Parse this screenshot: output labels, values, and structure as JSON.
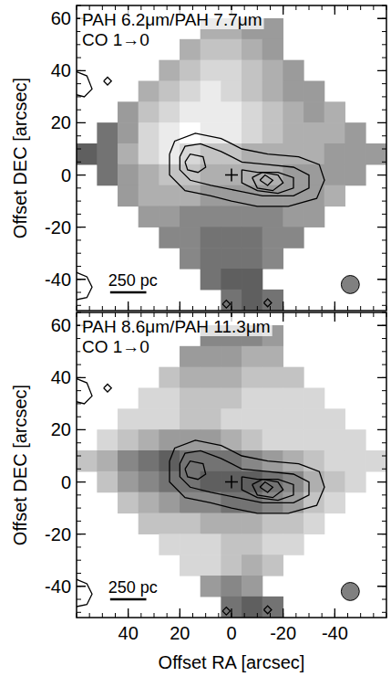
{
  "chart_data": [
    {
      "type": "heatmap",
      "title": "PAH 6.2μm/PAH 7.7μm",
      "subtitle": "CO 1→0",
      "ylabel": "Offset DEC [arcsec]",
      "tick_labels": "y",
      "xlim": [
        60,
        -60
      ],
      "ylim": [
        -52,
        65
      ],
      "xticks": [
        40,
        20,
        0,
        -20,
        -40
      ],
      "yticks": [
        -40,
        -20,
        0,
        20,
        40,
        60
      ],
      "x": [
        56,
        48,
        40,
        32,
        24,
        16,
        8,
        0,
        -8,
        -16,
        -24,
        -32,
        -40,
        -48,
        -56
      ],
      "y": [
        64,
        56,
        48,
        40,
        32,
        24,
        16,
        8,
        0,
        -8,
        -16,
        -24,
        -32,
        -40,
        -48
      ],
      "color_range": [
        0,
        10
      ],
      "cells": [
        [
          null,
          null,
          null,
          null,
          null,
          null,
          null,
          null,
          null,
          null,
          null,
          null,
          null,
          null,
          null
        ],
        [
          null,
          null,
          null,
          null,
          null,
          null,
          6,
          6,
          5,
          5,
          null,
          null,
          null,
          null,
          null
        ],
        [
          null,
          null,
          null,
          null,
          null,
          6,
          7,
          7,
          6,
          5,
          null,
          null,
          null,
          null,
          null
        ],
        [
          null,
          null,
          null,
          null,
          6,
          7,
          8,
          8,
          7,
          6,
          5,
          null,
          null,
          null,
          null
        ],
        [
          null,
          null,
          null,
          6,
          7,
          8,
          9,
          8,
          7,
          6,
          5,
          5,
          null,
          null,
          null
        ],
        [
          null,
          null,
          5,
          7,
          8,
          9,
          9,
          9,
          8,
          7,
          6,
          5,
          6,
          null,
          null
        ],
        [
          null,
          3,
          5,
          8,
          9,
          10,
          9,
          9,
          8,
          7,
          6,
          6,
          6,
          5,
          null
        ],
        [
          2,
          3,
          6,
          8,
          9,
          8,
          7,
          7,
          6,
          6,
          6,
          6,
          5,
          5,
          5
        ],
        [
          null,
          3,
          5,
          6,
          7,
          7,
          6,
          6,
          6,
          6,
          5,
          5,
          5,
          5,
          null
        ],
        [
          null,
          null,
          5,
          6,
          6,
          6,
          5,
          5,
          5,
          5,
          5,
          5,
          6,
          null,
          null
        ],
        [
          null,
          null,
          null,
          5,
          5,
          4,
          4,
          4,
          4,
          4,
          5,
          5,
          null,
          null,
          null
        ],
        [
          null,
          null,
          null,
          null,
          4,
          4,
          3,
          3,
          3,
          4,
          4,
          null,
          null,
          null,
          null
        ],
        [
          null,
          null,
          null,
          null,
          null,
          4,
          3,
          3,
          3,
          4,
          null,
          null,
          null,
          null,
          null
        ],
        [
          null,
          null,
          null,
          null,
          null,
          null,
          3,
          2,
          2,
          null,
          null,
          null,
          null,
          null,
          null
        ],
        [
          null,
          null,
          null,
          null,
          null,
          null,
          null,
          3,
          2,
          3,
          null,
          null,
          null,
          null,
          null
        ]
      ],
      "contours": [
        {
          "x": [
            24,
            22,
            14,
            4,
            -4,
            -14,
            -26,
            -34,
            -36,
            -33,
            -22,
            -10,
            0,
            8,
            18,
            24,
            24
          ],
          "y": [
            8,
            13,
            16,
            14,
            10,
            8,
            7,
            4,
            -2,
            -9,
            -12,
            -12,
            -10,
            -8,
            -6,
            0,
            8
          ]
        },
        {
          "x": [
            20,
            18,
            12,
            4,
            -4,
            -14,
            -24,
            -30,
            -30,
            -24,
            -12,
            -2,
            8,
            16,
            20,
            20
          ],
          "y": [
            7,
            11,
            12,
            9,
            5,
            4,
            3,
            0,
            -5,
            -8,
            -8,
            -6,
            -4,
            -2,
            2,
            7
          ]
        },
        {
          "x": [
            18,
            16,
            11,
            10,
            13,
            17,
            18
          ],
          "y": [
            5,
            8,
            7,
            3,
            1,
            2,
            5
          ]
        },
        {
          "x": [
            -4,
            -10,
            -18,
            -24,
            -24,
            -18,
            -10,
            -4,
            -4
          ],
          "y": [
            2,
            1,
            1,
            -1,
            -5,
            -7,
            -6,
            -3,
            2
          ]
        },
        {
          "x": [
            -8,
            -12,
            -18,
            -20,
            -16,
            -10,
            -8
          ],
          "y": [
            -1,
            1,
            0,
            -3,
            -6,
            -5,
            -1
          ]
        },
        {
          "x": [
            -11,
            -13,
            -16,
            -14,
            -11
          ],
          "y": [
            -2,
            0,
            -2,
            -4,
            -2
          ]
        },
        {
          "x": [
            61,
            56,
            54,
            57,
            61
          ],
          "y": [
            40,
            38,
            33,
            30,
            31
          ]
        },
        {
          "x": [
            49.5,
            48,
            46.5,
            48,
            49.5
          ],
          "y": [
            36,
            37.5,
            36,
            34.5,
            36
          ]
        },
        {
          "x": [
            61,
            56,
            54,
            56,
            61
          ],
          "y": [
            -37,
            -39,
            -43,
            -47,
            -48
          ]
        },
        {
          "x": [
            3.5,
            2,
            0.5,
            2,
            3.5
          ],
          "y": [
            -49.5,
            -48,
            -49.5,
            -51,
            -49.5
          ]
        },
        {
          "x": [
            -12.5,
            -14,
            -15.5,
            -14,
            -12.5
          ],
          "y": [
            -49,
            -47.5,
            -49,
            -50.5,
            -49
          ]
        }
      ],
      "nucleus": {
        "x": 0,
        "y": 0
      },
      "beam": {
        "x": -46,
        "y": -42,
        "radius": 3.5
      },
      "scale_bar": {
        "label": "250 pc",
        "x": [
          47,
          33
        ],
        "y": -45
      }
    },
    {
      "type": "heatmap",
      "title": "PAH 8.6μm/PAH 11.3μm",
      "subtitle": "CO 1→0",
      "xlabel": "Offset RA [arcsec]",
      "ylabel": "Offset DEC [arcsec]",
      "tick_labels": true,
      "xlim": [
        60,
        -60
      ],
      "ylim": [
        -52,
        65
      ],
      "xticks": [
        40,
        20,
        0,
        -20,
        -40
      ],
      "yticks": [
        -40,
        -20,
        0,
        20,
        40,
        60
      ],
      "x": [
        56,
        48,
        40,
        32,
        24,
        16,
        8,
        0,
        -8,
        -16,
        -24,
        -32,
        -40,
        -48,
        -56
      ],
      "y": [
        64,
        56,
        48,
        40,
        32,
        24,
        16,
        8,
        0,
        -8,
        -16,
        -24,
        -32,
        -40,
        -48
      ],
      "color_range": [
        0,
        10
      ],
      "cells": [
        [
          null,
          null,
          null,
          null,
          null,
          null,
          null,
          null,
          null,
          null,
          null,
          null,
          null,
          null,
          null
        ],
        [
          null,
          null,
          null,
          null,
          null,
          null,
          4,
          4,
          4,
          5,
          null,
          null,
          null,
          null,
          null
        ],
        [
          null,
          null,
          null,
          null,
          null,
          5,
          5,
          5,
          6,
          6,
          null,
          null,
          null,
          null,
          null
        ],
        [
          null,
          null,
          null,
          null,
          7,
          6,
          6,
          6,
          7,
          7,
          7,
          null,
          null,
          null,
          null
        ],
        [
          null,
          null,
          null,
          8,
          8,
          7,
          7,
          7,
          8,
          8,
          8,
          8,
          null,
          null,
          null
        ],
        [
          null,
          null,
          8,
          8,
          8,
          7,
          7,
          8,
          8,
          8,
          8,
          8,
          8,
          null,
          null
        ],
        [
          null,
          8,
          7,
          6,
          5,
          5,
          5,
          6,
          7,
          8,
          8,
          8,
          8,
          8,
          null
        ],
        [
          7,
          6,
          4,
          3,
          2,
          3,
          3,
          3,
          4,
          5,
          6,
          7,
          8,
          8,
          8
        ],
        [
          null,
          7,
          5,
          4,
          3,
          3,
          2,
          2,
          2,
          3,
          4,
          6,
          7,
          8,
          null
        ],
        [
          null,
          null,
          7,
          6,
          5,
          4,
          4,
          3,
          3,
          4,
          5,
          7,
          8,
          null,
          null
        ],
        [
          null,
          null,
          null,
          7,
          7,
          7,
          6,
          6,
          6,
          7,
          7,
          8,
          null,
          null,
          null
        ],
        [
          null,
          null,
          null,
          null,
          8,
          8,
          8,
          7,
          7,
          8,
          8,
          null,
          null,
          null,
          null
        ],
        [
          null,
          null,
          null,
          null,
          null,
          8,
          8,
          7,
          6,
          7,
          null,
          null,
          null,
          null,
          null
        ],
        [
          null,
          null,
          null,
          null,
          null,
          null,
          5,
          4,
          5,
          null,
          null,
          null,
          null,
          null,
          null
        ],
        [
          null,
          null,
          null,
          null,
          null,
          null,
          null,
          3,
          2,
          3,
          null,
          null,
          null,
          null,
          null
        ]
      ],
      "contours": [
        {
          "x": [
            24,
            22,
            14,
            4,
            -4,
            -14,
            -26,
            -34,
            -36,
            -33,
            -22,
            -10,
            0,
            8,
            18,
            24,
            24
          ],
          "y": [
            8,
            13,
            16,
            14,
            10,
            8,
            7,
            4,
            -2,
            -9,
            -12,
            -12,
            -10,
            -8,
            -6,
            0,
            8
          ]
        },
        {
          "x": [
            20,
            18,
            12,
            4,
            -4,
            -14,
            -24,
            -30,
            -30,
            -24,
            -12,
            -2,
            8,
            16,
            20,
            20
          ],
          "y": [
            7,
            11,
            12,
            9,
            5,
            4,
            3,
            0,
            -5,
            -8,
            -8,
            -6,
            -4,
            -2,
            2,
            7
          ]
        },
        {
          "x": [
            18,
            16,
            11,
            10,
            13,
            17,
            18
          ],
          "y": [
            5,
            8,
            7,
            3,
            1,
            2,
            5
          ]
        },
        {
          "x": [
            -4,
            -10,
            -18,
            -24,
            -24,
            -18,
            -10,
            -4,
            -4
          ],
          "y": [
            2,
            1,
            1,
            -1,
            -5,
            -7,
            -6,
            -3,
            2
          ]
        },
        {
          "x": [
            -8,
            -12,
            -18,
            -20,
            -16,
            -10,
            -8
          ],
          "y": [
            -1,
            1,
            0,
            -3,
            -6,
            -5,
            -1
          ]
        },
        {
          "x": [
            -11,
            -13,
            -16,
            -14,
            -11
          ],
          "y": [
            -2,
            0,
            -2,
            -4,
            -2
          ]
        },
        {
          "x": [
            61,
            56,
            54,
            57,
            61
          ],
          "y": [
            40,
            38,
            33,
            30,
            31
          ]
        },
        {
          "x": [
            49.5,
            48,
            46.5,
            48,
            49.5
          ],
          "y": [
            36,
            37.5,
            36,
            34.5,
            36
          ]
        },
        {
          "x": [
            61,
            56,
            54,
            56,
            61
          ],
          "y": [
            -37,
            -39,
            -43,
            -47,
            -48
          ]
        },
        {
          "x": [
            3.5,
            2,
            0.5,
            2,
            3.5
          ],
          "y": [
            -49.5,
            -48,
            -49.5,
            -51,
            -49.5
          ]
        },
        {
          "x": [
            -12.5,
            -14,
            -15.5,
            -14,
            -12.5
          ],
          "y": [
            -49,
            -47.5,
            -49,
            -50.5,
            -49
          ]
        }
      ],
      "nucleus": {
        "x": 0,
        "y": 0
      },
      "beam": {
        "x": -46,
        "y": -42,
        "radius": 3.5
      },
      "scale_bar": {
        "label": "250 pc",
        "x": [
          47,
          33
        ],
        "y": -45
      }
    }
  ]
}
